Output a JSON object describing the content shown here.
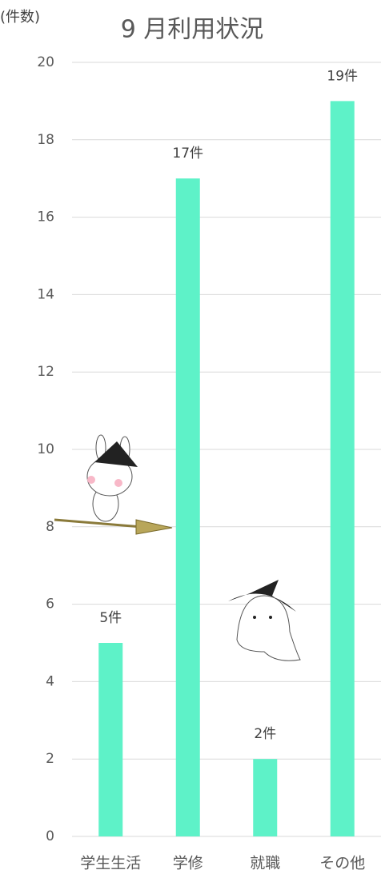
{
  "chart_data": {
    "type": "bar",
    "title": "9 月利用状況",
    "y_label": "(件数)",
    "categories": [
      "学生生活",
      "学修",
      "就職",
      "その他"
    ],
    "values": [
      5,
      17,
      2,
      19
    ],
    "value_labels": [
      "5件",
      "17件",
      "2件",
      "19件"
    ],
    "color": "#5ef2c8",
    "ylim": [
      0,
      20
    ],
    "yticks": [
      0,
      2,
      4,
      6,
      8,
      10,
      12,
      14,
      16,
      18,
      20
    ],
    "grid": true
  }
}
